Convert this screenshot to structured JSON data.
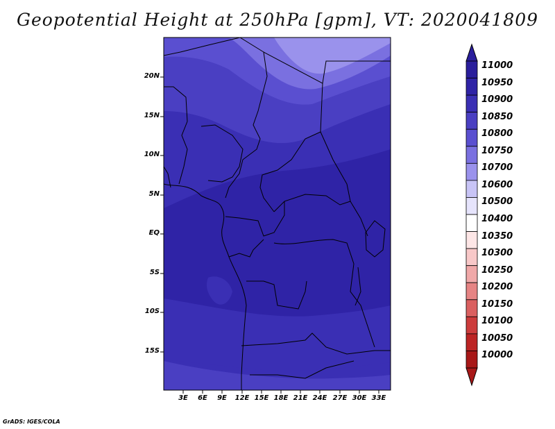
{
  "title": "Geopotential Height at 250hPa [gpm], VT: 2020041809",
  "footer": "GrADS: IGES/COLA",
  "map": {
    "lat_labels": [
      "20N",
      "15N",
      "10N",
      "5N",
      "EQ",
      "5S",
      "10S",
      "15S"
    ],
    "lon_labels": [
      "3E",
      "6E",
      "9E",
      "12E",
      "15E",
      "18E",
      "21E",
      "24E",
      "27E",
      "30E",
      "33E"
    ]
  },
  "colorbar": {
    "labels": [
      "11000",
      "10950",
      "10900",
      "10850",
      "10800",
      "10750",
      "10700",
      "10600",
      "10500",
      "10400",
      "10350",
      "10300",
      "10250",
      "10200",
      "10150",
      "10100",
      "10050",
      "10000"
    ],
    "colors": [
      "#2a1e9c",
      "#2f23a6",
      "#3a2fb4",
      "#4a3fc2",
      "#5a4fd0",
      "#7a70e0",
      "#9a92ec",
      "#c8c4f6",
      "#e6e4fc",
      "#ffffff",
      "#fde6e6",
      "#f8c8c8",
      "#f0a8a8",
      "#e68484",
      "#da6060",
      "#cc3c3c",
      "#bc2424",
      "#a81818"
    ]
  }
}
